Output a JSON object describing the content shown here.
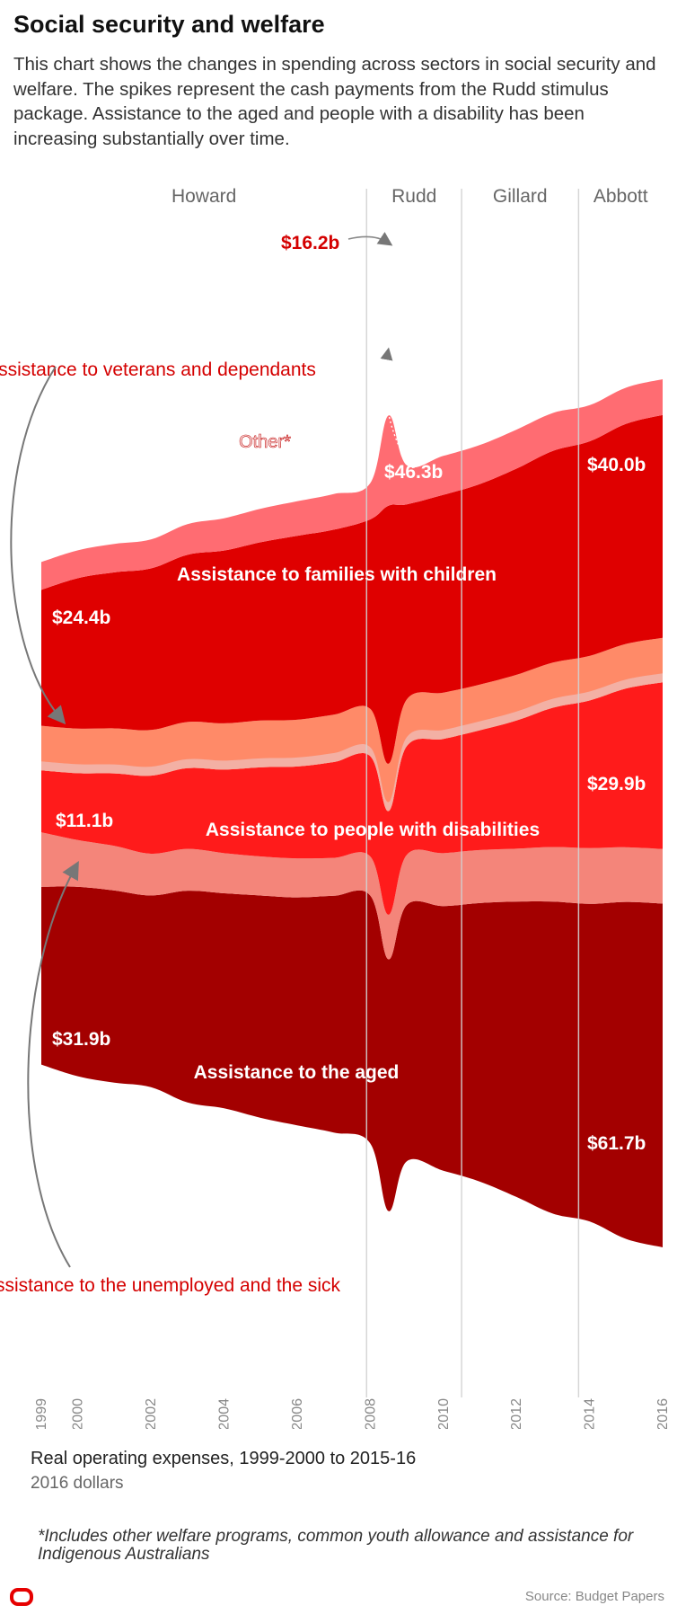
{
  "title": "Social security and welfare",
  "intro": "This chart shows the changes in spending across sectors in social security and welfare.  The spikes represent the cash payments from the Rudd stimulus package. Assistance to the aged and people with a disability has been increasing substantially over time.",
  "caption": "Real operating expenses, 1999-2000 to 2015-16",
  "caption_sub": "2016 dollars",
  "footnote": "*Includes other welfare programs, common youth allowance and assistance for Indigenous Australians",
  "source": "Source: Budget Papers",
  "colors": {
    "aged": "#a30000",
    "unemployed": "#f4857a",
    "disabilities": "#ff1b1b",
    "veterans_light": "#f3b0a4",
    "veterans": "#ff8a68",
    "families": "#df0000",
    "other": "#ff6c72",
    "label_red": "#d40000"
  },
  "chart_data": {
    "type": "area",
    "x": [
      1999,
      2000,
      2001,
      2002,
      2003,
      2004,
      2005,
      2006,
      2007,
      2008,
      2008.5,
      2009,
      2010,
      2011,
      2012,
      2013,
      2014,
      2015,
      2016
    ],
    "xticks": [
      "1999",
      "2000",
      "2002",
      "2004",
      "2006",
      "2008",
      "2010",
      "2012",
      "2014",
      "2016"
    ],
    "periods": [
      {
        "label": "Howard",
        "start": 1999,
        "end": 2007.9
      },
      {
        "label": "Rudd",
        "start": 2007.9,
        "end": 2010.5
      },
      {
        "label": "Gillard",
        "start": 2010.5,
        "end": 2013.7
      },
      {
        "label": "Abbott",
        "start": 2013.7,
        "end": 2016
      }
    ],
    "series": [
      {
        "name": "Assistance to the aged",
        "values": [
          31.9,
          34.0,
          34.5,
          34.4,
          38.0,
          38.6,
          39.9,
          40.9,
          42.5,
          44.5,
          45.2,
          46.0,
          47.5,
          50.0,
          53.0,
          56.0,
          57.0,
          60.5,
          61.7
        ]
      },
      {
        "name": "Assistance to the unemployed and the sick",
        "values": [
          9.8,
          8.4,
          8.0,
          7.5,
          7.5,
          7.2,
          7.0,
          7.0,
          6.8,
          7.0,
          8.0,
          9.0,
          9.5,
          9.5,
          9.5,
          9.8,
          10.0,
          9.8,
          9.8
        ]
      },
      {
        "name": "Assistance to people with disabilities",
        "values": [
          11.1,
          12.0,
          13.0,
          14.0,
          14.5,
          15.0,
          16.0,
          16.5,
          17.2,
          18.0,
          18.6,
          19.5,
          20.5,
          21.5,
          23.0,
          25.0,
          26.5,
          28.5,
          29.9
        ]
      },
      {
        "name": "Assistance to veterans and dependants",
        "values": [
          8.0,
          8.0,
          8.1,
          8.2,
          8.3,
          8.3,
          8.4,
          8.4,
          8.5,
          8.5,
          8.5,
          8.4,
          8.3,
          8.2,
          8.2,
          8.1,
          8.0,
          8.0,
          8.0
        ]
      },
      {
        "name": "Assistance to families with children",
        "values": [
          24.4,
          27.0,
          28.0,
          29.0,
          30.0,
          31.0,
          32.0,
          33.0,
          33.2,
          34.0,
          46.3,
          35.0,
          35.5,
          36.0,
          37.0,
          38.0,
          38.5,
          39.5,
          40.0
        ]
      },
      {
        "name": "Other*",
        "values": [
          5.0,
          5.0,
          5.1,
          5.2,
          5.5,
          5.8,
          6.0,
          6.2,
          6.4,
          6.5,
          16.2,
          7.0,
          7.0,
          7.0,
          7.0,
          6.8,
          6.5,
          6.5,
          6.4
        ]
      }
    ],
    "area_labels": [
      "Assistance to the aged",
      "Assistance to people with disabilities",
      "Assistance to families with children",
      "Other*"
    ],
    "callouts": [
      "Assistance to veterans and dependants",
      "Assistance to the unemployed and the sick"
    ],
    "value_labels": [
      "$16.2b",
      "$46.3b",
      "$40.0b",
      "$24.4b",
      "$29.9b",
      "$11.1b",
      "$31.9b",
      "$61.7b"
    ]
  }
}
